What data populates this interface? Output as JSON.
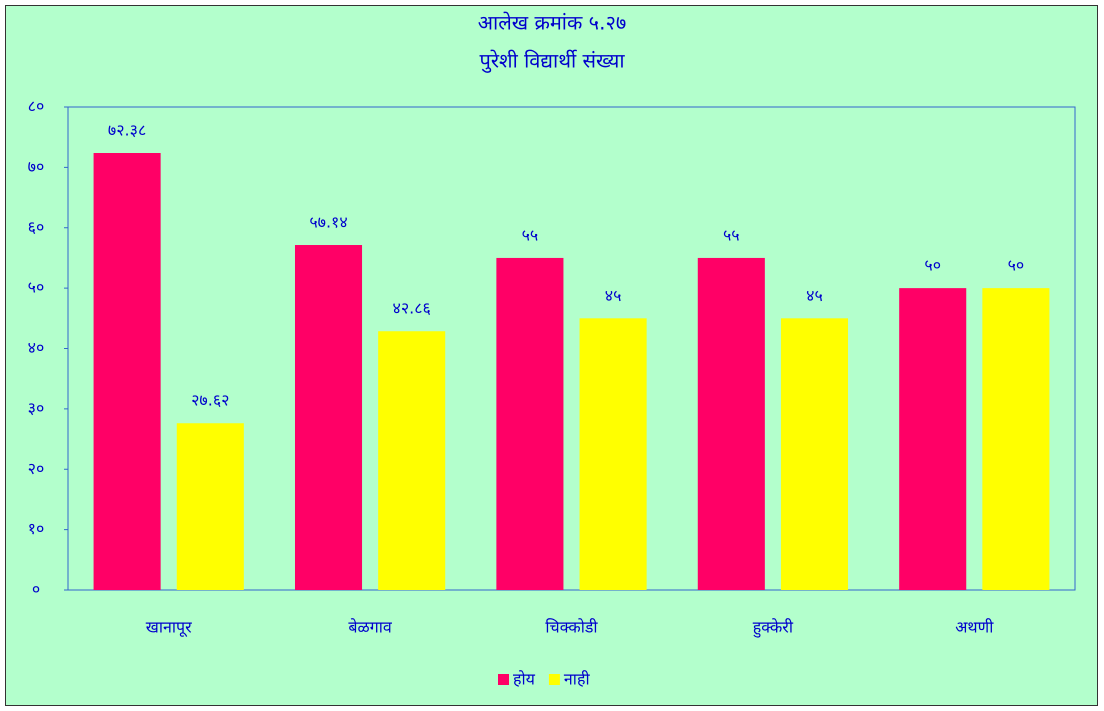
{
  "chart_data": {
    "type": "bar",
    "title": "आलेख क्रमांक ५.२७",
    "subtitle": "पुरेशी विद्यार्थी संख्या",
    "categories": [
      "खानापूर",
      "बेळगाव",
      "चिक्कोडी",
      "हुक्केरी",
      "अथणी"
    ],
    "series": [
      {
        "name": "होय",
        "color": "#ff0066",
        "values": [
          72.38,
          57.14,
          55,
          55,
          50
        ],
        "value_labels": [
          "७२.३८",
          "५७.१४",
          "५५",
          "५५",
          "५०"
        ]
      },
      {
        "name": "नाही",
        "color": "#ffff00",
        "values": [
          27.62,
          42.86,
          45,
          45,
          50
        ],
        "value_labels": [
          "२७.६२",
          "४२.८६",
          "४५",
          "४५",
          "५०"
        ]
      }
    ],
    "ylim": [
      0,
      80
    ],
    "yticks": [
      {
        "value": 0,
        "label": "०"
      },
      {
        "value": 10,
        "label": "१०"
      },
      {
        "value": 20,
        "label": "२०"
      },
      {
        "value": 30,
        "label": "३०"
      },
      {
        "value": 40,
        "label": "४०"
      },
      {
        "value": 50,
        "label": "५०"
      },
      {
        "value": 60,
        "label": "६०"
      },
      {
        "value": 70,
        "label": "७०"
      },
      {
        "value": 80,
        "label": "८०"
      }
    ],
    "grid": false,
    "legend": "bottom"
  }
}
